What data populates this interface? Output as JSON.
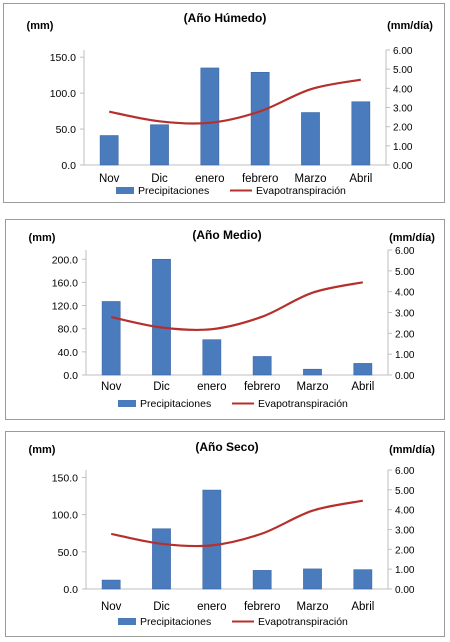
{
  "colors": {
    "bar": "#4a7bbd",
    "bar_edge": "#3a66a3",
    "line": "#b5302c",
    "axis": "#bfbfbf"
  },
  "legend": {
    "bar_label": "Precipitaciones",
    "line_label": "Evapotranspiración"
  },
  "chart_data": [
    {
      "type": "bar",
      "title": "(Año Húmedo)",
      "categories": [
        "Nov",
        "Dic",
        "enero",
        "febrero",
        "Marzo",
        "Abril"
      ],
      "left_unit": "(mm)",
      "right_unit": "(mm/día)",
      "left_ticks": [
        "0.0",
        "50.0",
        "100.0",
        "150.0"
      ],
      "right_ticks": [
        "0.00",
        "1.00",
        "2.00",
        "3.00",
        "4.00",
        "5.00",
        "6.00"
      ],
      "ylim_left": [
        0,
        160
      ],
      "ylim_right": [
        0,
        6
      ],
      "series": [
        {
          "name": "Precipitaciones",
          "type": "bar",
          "axis": "left",
          "values": [
            41,
            56,
            135,
            129,
            73,
            88
          ]
        },
        {
          "name": "Evapotranspiración",
          "type": "line",
          "axis": "right",
          "values": [
            2.78,
            2.28,
            2.2,
            2.8,
            3.95,
            4.45
          ]
        }
      ],
      "legend_position": "bottom"
    },
    {
      "type": "bar",
      "title": "(Año Medio)",
      "categories": [
        "Nov",
        "Dic",
        "enero",
        "febrero",
        "Marzo",
        "Abril"
      ],
      "left_unit": "(mm)",
      "right_unit": "(mm/día)",
      "left_ticks": [
        "0.0",
        "40.0",
        "80.0",
        "120.0",
        "160.0",
        "200.0"
      ],
      "right_ticks": [
        "0.00",
        "1.00",
        "2.00",
        "3.00",
        "4.00",
        "5.00",
        "6.00"
      ],
      "ylim_left": [
        0,
        216
      ],
      "ylim_right": [
        0,
        6
      ],
      "series": [
        {
          "name": "Precipitaciones",
          "type": "bar",
          "axis": "left",
          "values": [
            127,
            200,
            61,
            32,
            10,
            20
          ]
        },
        {
          "name": "Evapotranspiración",
          "type": "line",
          "axis": "right",
          "values": [
            2.78,
            2.28,
            2.2,
            2.8,
            3.95,
            4.45
          ]
        }
      ],
      "legend_position": "bottom"
    },
    {
      "type": "bar",
      "title": "(Año Seco)",
      "categories": [
        "Nov",
        "Dic",
        "enero",
        "febrero",
        "Marzo",
        "Abril"
      ],
      "left_unit": "(mm)",
      "right_unit": "(mm/día)",
      "left_ticks": [
        "0.0",
        "50.0",
        "100.0",
        "150.0"
      ],
      "right_ticks": [
        "0.00",
        "1.00",
        "2.00",
        "3.00",
        "4.00",
        "5.00",
        "6.00"
      ],
      "ylim_left": [
        0,
        160
      ],
      "ylim_right": [
        0,
        6
      ],
      "series": [
        {
          "name": "Precipitaciones",
          "type": "bar",
          "axis": "left",
          "values": [
            12,
            81,
            133,
            25,
            27,
            26
          ]
        },
        {
          "name": "Evapotranspiración",
          "type": "line",
          "axis": "right",
          "values": [
            2.78,
            2.28,
            2.2,
            2.8,
            3.95,
            4.45
          ]
        }
      ],
      "legend_position": "bottom"
    }
  ]
}
